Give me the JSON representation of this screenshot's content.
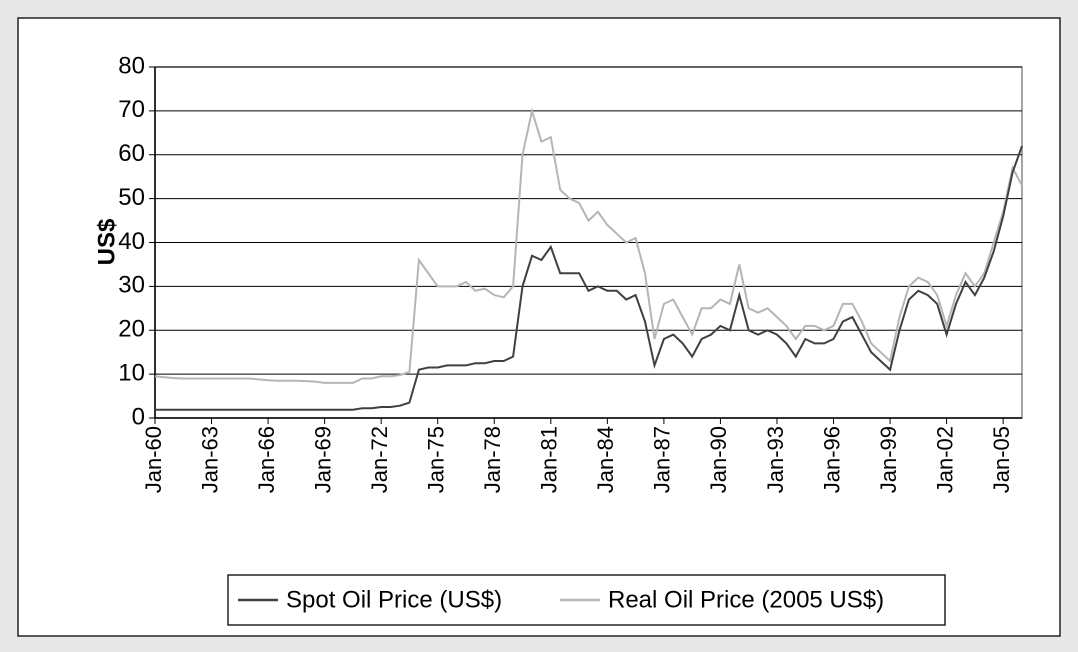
{
  "chart_data": {
    "type": "line",
    "y_label": "US$",
    "categories": [
      "Jan-60",
      null,
      null,
      null,
      null,
      null,
      "Jan-63",
      null,
      null,
      null,
      null,
      null,
      "Jan-66",
      null,
      null,
      null,
      null,
      null,
      "Jan-69",
      null,
      null,
      null,
      null,
      null,
      "Jan-72",
      null,
      null,
      null,
      null,
      null,
      "Jan-75",
      null,
      null,
      null,
      null,
      null,
      "Jan-78",
      null,
      null,
      null,
      null,
      null,
      "Jan-81",
      null,
      null,
      null,
      null,
      null,
      "Jan-84",
      null,
      null,
      null,
      null,
      null,
      "Jan-87",
      null,
      null,
      null,
      null,
      null,
      "Jan-90",
      null,
      null,
      null,
      null,
      null,
      "Jan-93",
      null,
      null,
      null,
      null,
      null,
      "Jan-96",
      null,
      null,
      null,
      null,
      null,
      "Jan-99",
      null,
      null,
      null,
      null,
      null,
      "Jan-02",
      null,
      null,
      null,
      null,
      null,
      "Jan-05",
      null,
      null
    ],
    "series": [
      {
        "name": "Spot Oil Price (US$)",
        "color": "#404040",
        "values": [
          1.9,
          1.9,
          1.9,
          1.9,
          1.9,
          1.9,
          1.9,
          1.9,
          1.9,
          1.9,
          1.9,
          1.9,
          1.9,
          1.9,
          1.9,
          1.9,
          1.9,
          1.9,
          1.9,
          1.9,
          1.9,
          1.9,
          2.2,
          2.2,
          2.5,
          2.5,
          2.8,
          3.5,
          11,
          11.5,
          11.5,
          12,
          12,
          12,
          12.5,
          12.5,
          13,
          13,
          14,
          30,
          37,
          36,
          39,
          33,
          33,
          33,
          29,
          30,
          29,
          29,
          27,
          28,
          22,
          12,
          18,
          19,
          17,
          14,
          18,
          19,
          21,
          20,
          28,
          20,
          19,
          20,
          19,
          17,
          14,
          18,
          17,
          17,
          18,
          22,
          23,
          19,
          15,
          13,
          11,
          20,
          27,
          29,
          28,
          26,
          19,
          26,
          31,
          28,
          32,
          38,
          46,
          56,
          62
        ]
      },
      {
        "name": "Real Oil Price (2005 US$)",
        "color": "#b5b5b5",
        "values": [
          9.5,
          9.3,
          9.1,
          9,
          9,
          9,
          9,
          9,
          9,
          9,
          9,
          8.8,
          8.6,
          8.5,
          8.5,
          8.5,
          8.4,
          8.3,
          8,
          8,
          8,
          8,
          9,
          9,
          9.5,
          9.5,
          9.8,
          10.5,
          36,
          33,
          30,
          30,
          30,
          31,
          29,
          29.5,
          28,
          27.5,
          30,
          60,
          70,
          63,
          64,
          52,
          50,
          49,
          45,
          47,
          44,
          42,
          40,
          41,
          33,
          18,
          26,
          27,
          23,
          19,
          25,
          25,
          27,
          26,
          35,
          25,
          24,
          25,
          23,
          21,
          18,
          21,
          21,
          20,
          21,
          26,
          26,
          22,
          17,
          15,
          13,
          23,
          30,
          32,
          31,
          28,
          21,
          28,
          33,
          30,
          33,
          40,
          47,
          57,
          53
        ]
      }
    ],
    "ylim": [
      0,
      80
    ],
    "yticks": [
      0,
      10,
      20,
      30,
      40,
      50,
      60,
      70,
      80
    ],
    "grid": true,
    "legend": "bottom"
  }
}
